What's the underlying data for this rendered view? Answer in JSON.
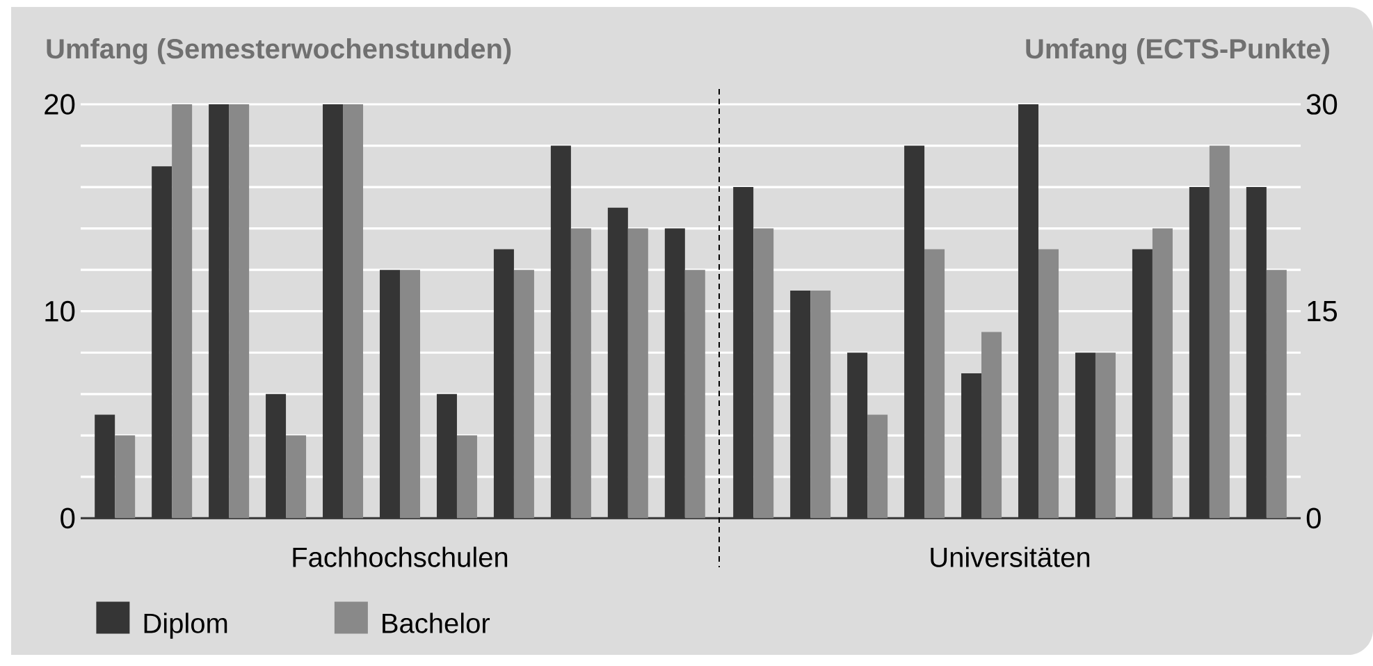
{
  "chart_data": [
    {
      "type": "bar",
      "ylabel": "Umfang (Semesterwochenstunden)",
      "xlabel": "Fachhochschulen",
      "categories": [
        null,
        null,
        null,
        null,
        null,
        null,
        null,
        null,
        null,
        null,
        null
      ],
      "series": [
        {
          "name": "Diplom",
          "color": "#353535",
          "values": [
            5,
            17,
            20,
            6,
            20,
            12,
            6,
            13,
            18,
            15,
            14
          ]
        },
        {
          "name": "Bachelor",
          "color": "#898989",
          "values": [
            4,
            20,
            20,
            4,
            20,
            12,
            4,
            12,
            14,
            14,
            12
          ]
        }
      ],
      "ylim": [
        0,
        20
      ],
      "yticks": [
        0,
        {
          "value": 2,
          "label": null
        },
        {
          "value": 4,
          "label": null
        },
        {
          "value": 6,
          "label": null
        },
        {
          "value": 8,
          "label": null
        },
        10,
        {
          "value": 12,
          "label": null
        },
        {
          "value": 14,
          "label": null
        },
        {
          "value": 16,
          "label": null
        },
        {
          "value": 18,
          "label": null
        },
        20
      ],
      "grid": "y",
      "legend": "bottom left"
    },
    {
      "type": "bar",
      "ylabel": "Umfang (ECTS-Punkte)",
      "xlabel": "Universitäten",
      "categories": [
        null,
        null,
        null,
        null,
        null,
        null,
        null,
        null,
        null,
        null
      ],
      "series": [
        {
          "color": "#353535",
          "values": [
            24,
            16.5,
            12,
            27,
            10.5,
            30,
            12,
            19.5,
            24,
            24
          ]
        },
        {
          "color": "#898989",
          "values": [
            21,
            16.5,
            7.5,
            19.5,
            13.5,
            19.5,
            12,
            21,
            27,
            18
          ]
        }
      ],
      "ylim": [
        0,
        30
      ],
      "yticks": [
        0,
        {
          "value": 3,
          "label": null
        },
        {
          "value": 6,
          "label": null
        },
        {
          "value": 9,
          "label": null
        },
        {
          "value": 12,
          "label": null
        },
        15,
        {
          "value": 18,
          "label": null
        },
        {
          "value": 21,
          "label": null
        },
        {
          "value": 24,
          "label": null
        },
        {
          "value": 27,
          "label": null
        },
        30
      ],
      "grid": "y"
    }
  ]
}
